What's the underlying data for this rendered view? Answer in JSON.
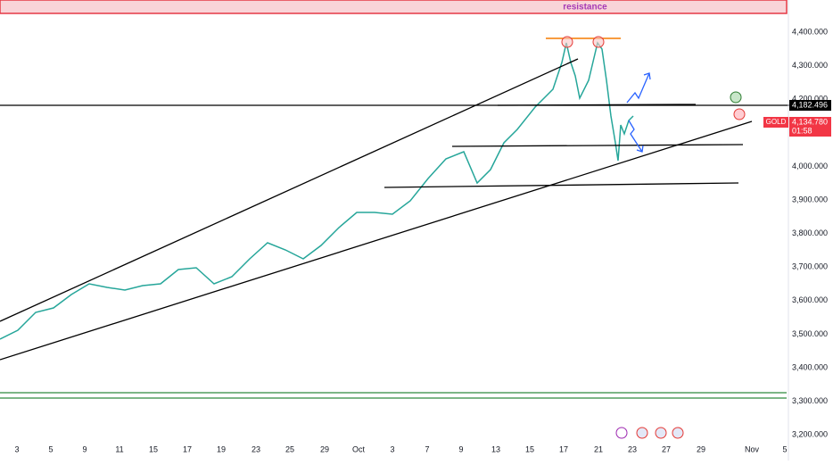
{
  "header": {
    "zone_label": "resistance"
  },
  "price_axis": {
    "labels": [
      "4,400.000",
      "4,300.000",
      "4,200.000",
      "4,100.000",
      "4,000.000",
      "3,900.000",
      "3,800.000",
      "3,700.000",
      "3,600.000",
      "3,500.000",
      "3,400.000",
      "3,300.000",
      "3,200.000"
    ]
  },
  "time_axis": {
    "labels": [
      "3",
      "5",
      "9",
      "11",
      "15",
      "17",
      "19",
      "23",
      "25",
      "29",
      "Oct",
      "3",
      "7",
      "9",
      "13",
      "15",
      "17",
      "21",
      "23",
      "27",
      "29",
      "Nov",
      "5"
    ]
  },
  "level_label": "4,182.496",
  "symbol": {
    "name": "GOLD",
    "price": "4,134.780",
    "countdown": "01:58"
  }
}
